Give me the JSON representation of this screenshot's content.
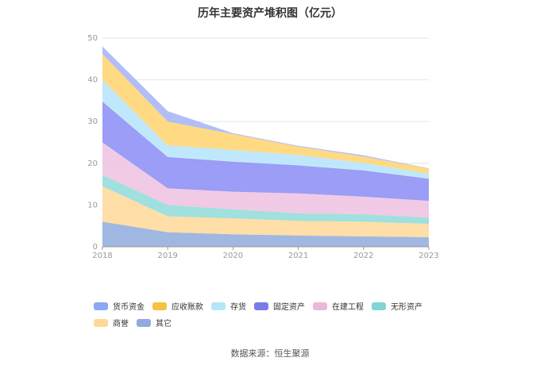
{
  "chart_data": {
    "type": "area",
    "stacked": true,
    "title": "历年主要资产堆积图（亿元）",
    "x": [
      "2018",
      "2019",
      "2020",
      "2021",
      "2022",
      "2023"
    ],
    "ylim": [
      0,
      50
    ],
    "yticks": [
      "0",
      "10",
      "20",
      "30",
      "40",
      "50"
    ],
    "grid": true,
    "legend_position": "bottom",
    "series": [
      {
        "name": "其它",
        "color": "#8faadc",
        "values": [
          6.0,
          3.5,
          3.0,
          2.7,
          2.5,
          2.3
        ]
      },
      {
        "name": "商誉",
        "color": "#ffd899",
        "values": [
          8.5,
          3.8,
          3.8,
          3.5,
          3.5,
          3.2
        ]
      },
      {
        "name": "无形资产",
        "color": "#8fdad8",
        "values": [
          2.7,
          2.7,
          2.2,
          1.8,
          1.8,
          1.5
        ]
      },
      {
        "name": "在建工程",
        "color": "#eec1e2",
        "values": [
          7.8,
          4.0,
          4.2,
          4.8,
          4.2,
          4.0
        ]
      },
      {
        "name": "固定资产",
        "color": "#8a8cf5",
        "values": [
          9.8,
          7.5,
          7.2,
          6.7,
          6.3,
          5.3
        ]
      },
      {
        "name": "存货",
        "color": "#b5e4fb",
        "values": [
          5.2,
          2.8,
          2.8,
          2.5,
          1.8,
          1.2
        ]
      },
      {
        "name": "应收账款",
        "color": "#ffd36d",
        "values": [
          6.2,
          5.7,
          3.8,
          2.0,
          1.5,
          1.2
        ]
      },
      {
        "name": "货币资金",
        "color": "#a3b3f6",
        "values": [
          1.8,
          2.5,
          0.2,
          0.2,
          0.3,
          0.1
        ]
      }
    ]
  },
  "legend": [
    {
      "label": "货币资金",
      "color": "#8aa8f3"
    },
    {
      "label": "应收账款",
      "color": "#f7c143"
    },
    {
      "label": "存货",
      "color": "#b5e4fb"
    },
    {
      "label": "固定资产",
      "color": "#7b7bee"
    },
    {
      "label": "在建工程",
      "color": "#eab8dd"
    },
    {
      "label": "无形资产",
      "color": "#7fd6d4"
    },
    {
      "label": "商誉",
      "color": "#ffd899"
    },
    {
      "label": "其它",
      "color": "#8faadc"
    }
  ],
  "source": "数据来源：恒生聚源"
}
